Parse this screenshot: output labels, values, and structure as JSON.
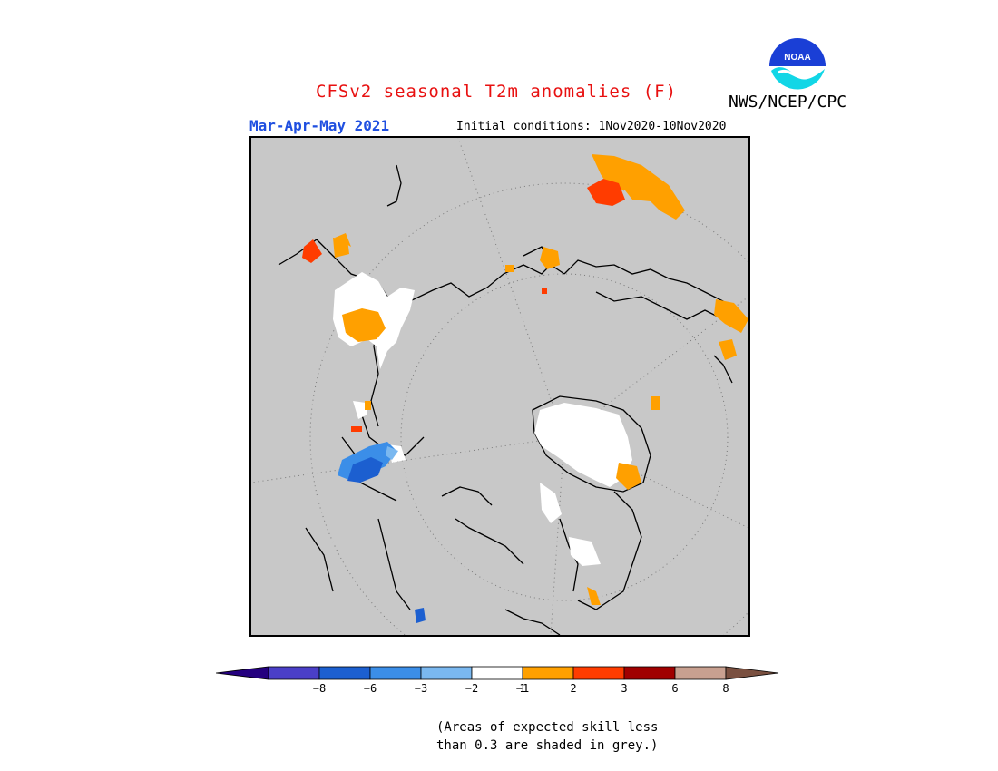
{
  "header": {
    "title": "CFSv2 seasonal T2m anomalies (F)",
    "title_color": "#e81010",
    "agency": "NWS/NCEP/CPC",
    "season": "Mar-Apr-May 2021",
    "season_color": "#1f4fe0",
    "initial_conditions": "Initial conditions: 1Nov2020-10Nov2020"
  },
  "logo": {
    "icon": "noaa-logo-icon",
    "text": "NOAA"
  },
  "map": {
    "projection": "north-polar-stereographic",
    "background_color": "#c8c8c8"
  },
  "colorbar": {
    "colors": [
      "#24007f",
      "#4a3fc8",
      "#1c5fd0",
      "#3b8ee8",
      "#7ab8f0",
      "#ffffff",
      "#ffa000",
      "#ff3c00",
      "#a00000",
      "#c8a090",
      "#7a5040"
    ],
    "tick_labels": [
      "−8",
      "−6",
      "−3",
      "−2",
      "−1",
      "1",
      "2",
      "3",
      "6",
      "8"
    ]
  },
  "note": {
    "line1": "(Areas of expected skill less",
    "line2": "than 0.3 are shaded in grey.)"
  }
}
